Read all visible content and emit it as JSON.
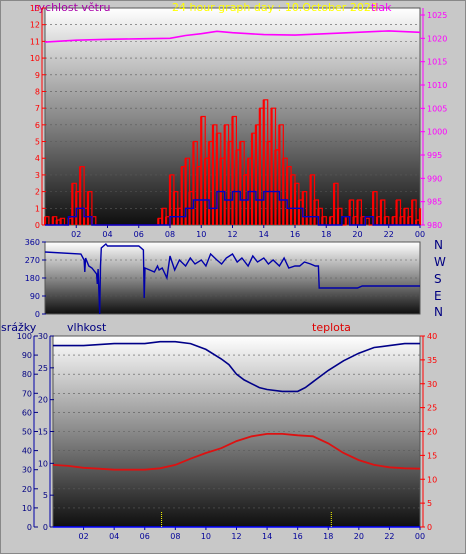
{
  "header": {
    "title": "24 hour graph day : 10.October 2023",
    "label_left": "rychlost větru",
    "label_right": "tlak"
  },
  "labels": {
    "srazky": "srážky",
    "vlhkost": "vlhkost",
    "teplota": "teplota"
  },
  "directions": [
    "N",
    "W",
    "S",
    "E",
    "N"
  ],
  "colors": {
    "title": "#ffff00",
    "wind_label": "#aa00aa",
    "pressure": "#ff00ff",
    "gust": "#ff0000",
    "wind": "#0000cc",
    "direction": "#0000aa",
    "humidity": "#000088",
    "temperature": "#dd1111",
    "rain": "#0000ff",
    "rain_marks": "#ffff00",
    "axis_dark": "#000099",
    "axis_red": "#ff0000"
  },
  "chart_data": [
    {
      "type": "line",
      "name": "wind-and-pressure",
      "x_ticks": [
        "02",
        "04",
        "06",
        "08",
        "10",
        "12",
        "14",
        "16",
        "18",
        "20",
        "22",
        "00"
      ],
      "left_axis": {
        "ticks": [
          "0",
          "1",
          "2",
          "3",
          "4",
          "5",
          "6",
          "7",
          "8",
          "9",
          "10",
          "11",
          "12",
          "13"
        ],
        "ylim": [
          0,
          13
        ]
      },
      "right_axis": {
        "ticks": [
          "980",
          "985",
          "990",
          "995",
          "1000",
          "1005",
          "1010",
          "1015",
          "1020",
          "1025"
        ],
        "ylim": [
          980,
          1026.5
        ]
      },
      "series": [
        {
          "name": "tlak",
          "axis": "right",
          "x": [
            0,
            2,
            4,
            6,
            8,
            9,
            10,
            11,
            12,
            14,
            16,
            18,
            20,
            22,
            24
          ],
          "y": [
            1019.2,
            1019.6,
            1019.8,
            1019.9,
            1020.0,
            1020.6,
            1021.0,
            1021.5,
            1021.2,
            1020.8,
            1020.7,
            1021.0,
            1021.3,
            1021.6,
            1021.3
          ]
        },
        {
          "name": "gust",
          "axis": "left",
          "x": [
            0,
            0.25,
            0.5,
            0.75,
            1,
            1.25,
            1.5,
            1.75,
            2,
            2.25,
            2.5,
            2.75,
            3,
            3.25,
            3.5,
            3.75,
            4,
            4.25,
            4.5,
            4.75,
            5,
            5.25,
            5.5,
            5.75,
            6,
            6.25,
            6.5,
            6.75,
            7,
            7.25,
            7.5,
            7.75,
            8,
            8.25,
            8.5,
            8.75,
            9,
            9.25,
            9.5,
            9.75,
            10,
            10.25,
            10.5,
            10.75,
            11,
            11.25,
            11.5,
            11.75,
            12,
            12.25,
            12.5,
            12.75,
            13,
            13.25,
            13.5,
            13.75,
            14,
            14.25,
            14.5,
            14.75,
            15,
            15.25,
            15.5,
            15.75,
            16,
            16.25,
            16.5,
            16.75,
            17,
            17.25,
            17.5,
            17.75,
            18,
            18.25,
            18.5,
            18.75,
            19,
            19.25,
            19.5,
            19.75,
            20,
            20.25,
            20.5,
            20.75,
            21,
            21.25,
            21.5,
            21.75,
            22,
            22.25,
            22.5,
            22.75,
            23,
            23.25,
            23.5,
            23.75,
            24
          ],
          "y": [
            0.5,
            0,
            0.5,
            0.3,
            0.4,
            0,
            0.4,
            2.5,
            2.0,
            3.5,
            1.0,
            2.0,
            0.5,
            0,
            0,
            0,
            0,
            0,
            0,
            0,
            0,
            0,
            0,
            0,
            0,
            0,
            0,
            0,
            0,
            0.4,
            1.0,
            0.5,
            3.0,
            2.0,
            1.0,
            3.5,
            4.0,
            2.0,
            5.0,
            3.5,
            6.5,
            4.0,
            5.0,
            6.0,
            5.5,
            4.0,
            6.0,
            5.0,
            6.5,
            4.5,
            5.0,
            3.0,
            4.0,
            5.5,
            6.0,
            7.0,
            7.5,
            5.0,
            7.0,
            4.5,
            6.0,
            4.0,
            3.5,
            3.0,
            2.5,
            1.5,
            2.0,
            0.5,
            3.0,
            1.5,
            1.0,
            0.5,
            0,
            0.5,
            2.5,
            1.0,
            0,
            0.5,
            1.5,
            0.5,
            1.5,
            0.5,
            0.4,
            0,
            2.0,
            0.5,
            1.5,
            0.5,
            0,
            0.5,
            1.5,
            0.5,
            1.0,
            0.5,
            1.5,
            0.3,
            1.0
          ]
        },
        {
          "name": "wind",
          "axis": "left",
          "x": [
            0,
            0.5,
            1,
            1.5,
            2,
            2.5,
            3,
            3.5,
            4,
            7.5,
            8,
            8.5,
            9,
            9.5,
            10,
            10.5,
            11,
            11.5,
            12,
            12.5,
            13,
            13.5,
            14,
            14.5,
            15,
            15.5,
            16,
            16.5,
            17,
            17.5,
            18,
            18.5,
            19,
            19.5,
            20,
            20.5,
            21,
            21.5,
            22,
            22.5,
            23,
            23.5,
            24
          ],
          "y": [
            0,
            0,
            0,
            0.5,
            1.0,
            0.5,
            0,
            0,
            0,
            0,
            0.5,
            0.5,
            1.0,
            1.5,
            1.5,
            1.0,
            2.0,
            1.5,
            2.0,
            1.5,
            2.0,
            1.5,
            2.0,
            2.0,
            1.5,
            1.0,
            1.0,
            0.5,
            0.5,
            0,
            0,
            0,
            0.5,
            0,
            0,
            0.5,
            0,
            0,
            0,
            0,
            0,
            0,
            0
          ]
        }
      ]
    },
    {
      "type": "line",
      "name": "wind-direction",
      "x_ticks": [
        "02",
        "04",
        "06",
        "08",
        "10",
        "12",
        "14",
        "16",
        "18",
        "20",
        "22",
        "00"
      ],
      "left_axis": {
        "ticks": [
          "0",
          "90",
          "180",
          "270",
          "360"
        ],
        "ylim": [
          0,
          360
        ]
      },
      "series": [
        {
          "name": "direction",
          "x": [
            0,
            2.3,
            2.5,
            2.55,
            2.6,
            2.8,
            3,
            3.3,
            3.35,
            3.4,
            3.5,
            3.55,
            3.6,
            3.9,
            4,
            6,
            6.3,
            6.35,
            6.4,
            7,
            7.2,
            7.3,
            7.5,
            7.8,
            8,
            8.3,
            8.6,
            9,
            9.3,
            9.6,
            10,
            10.3,
            10.6,
            11,
            11.3,
            11.6,
            12,
            12.3,
            12.6,
            13,
            13.3,
            13.6,
            14,
            14.3,
            14.6,
            15,
            15.3,
            15.6,
            16,
            16.3,
            16.6,
            17,
            17.3,
            17.5,
            17.55,
            17.6,
            20,
            20.3,
            24
          ],
          "y": [
            310,
            300,
            270,
            210,
            280,
            240,
            230,
            200,
            150,
            225,
            0,
            240,
            330,
            350,
            340,
            340,
            320,
            80,
            230,
            210,
            240,
            220,
            230,
            180,
            290,
            220,
            270,
            240,
            280,
            250,
            270,
            240,
            300,
            270,
            250,
            280,
            300,
            260,
            280,
            240,
            290,
            260,
            280,
            250,
            270,
            240,
            280,
            230,
            240,
            240,
            260,
            250,
            240,
            240,
            130,
            130,
            130,
            140,
            140
          ]
        }
      ]
    },
    {
      "type": "line",
      "name": "humidity-temperature-rain",
      "x_ticks": [
        "02",
        "04",
        "06",
        "08",
        "10",
        "12",
        "14",
        "16",
        "18",
        "20",
        "22",
        "00"
      ],
      "left_axis_srazky": {
        "ticks": [
          "0",
          "10",
          "20",
          "30",
          "40",
          "50",
          "60",
          "70",
          "80",
          "90",
          "100"
        ],
        "ylim": [
          0,
          100
        ]
      },
      "left_axis_vlhkost": {
        "ticks": [
          "0",
          "5",
          "10",
          "15",
          "20",
          "25",
          "30"
        ],
        "ylim": [
          0,
          30
        ]
      },
      "right_axis_teplota": {
        "ticks": [
          "0",
          "5",
          "10",
          "15",
          "20",
          "25",
          "30",
          "35",
          "40"
        ],
        "ylim": [
          0,
          40
        ]
      },
      "series": [
        {
          "name": "vlhkost",
          "axis": "srazky",
          "x": [
            0,
            2,
            4,
            6,
            7,
            8,
            9,
            10,
            11,
            11.5,
            12,
            12.5,
            13,
            13.5,
            14,
            15,
            15.5,
            16,
            16.5,
            17,
            18,
            19,
            20,
            21,
            22,
            23,
            24
          ],
          "y": [
            95,
            95,
            96,
            96,
            97,
            97,
            96,
            93,
            88,
            85,
            80,
            77,
            75,
            73,
            72,
            71,
            71,
            71,
            73,
            76,
            82,
            87,
            91,
            94,
            95,
            96,
            96
          ]
        },
        {
          "name": "teplota",
          "axis": "teplota",
          "x": [
            0,
            1,
            2,
            3,
            4,
            5,
            6,
            7,
            8,
            9,
            10,
            11,
            12,
            13,
            14,
            15,
            16,
            17,
            18,
            19,
            20,
            21,
            22,
            23,
            24
          ],
          "y": [
            13.0,
            12.8,
            12.4,
            12.2,
            12.0,
            12.0,
            12.0,
            12.3,
            13.0,
            14.3,
            15.5,
            16.5,
            18.0,
            19.0,
            19.5,
            19.5,
            19.2,
            19.0,
            17.5,
            15.5,
            14.0,
            13.0,
            12.5,
            12.3,
            12.2
          ]
        },
        {
          "name": "rain",
          "axis": "srazky",
          "x": [
            0,
            24
          ],
          "y": [
            0,
            0
          ]
        }
      ],
      "rain_marks_x": [
        7.1,
        18.2
      ]
    }
  ]
}
